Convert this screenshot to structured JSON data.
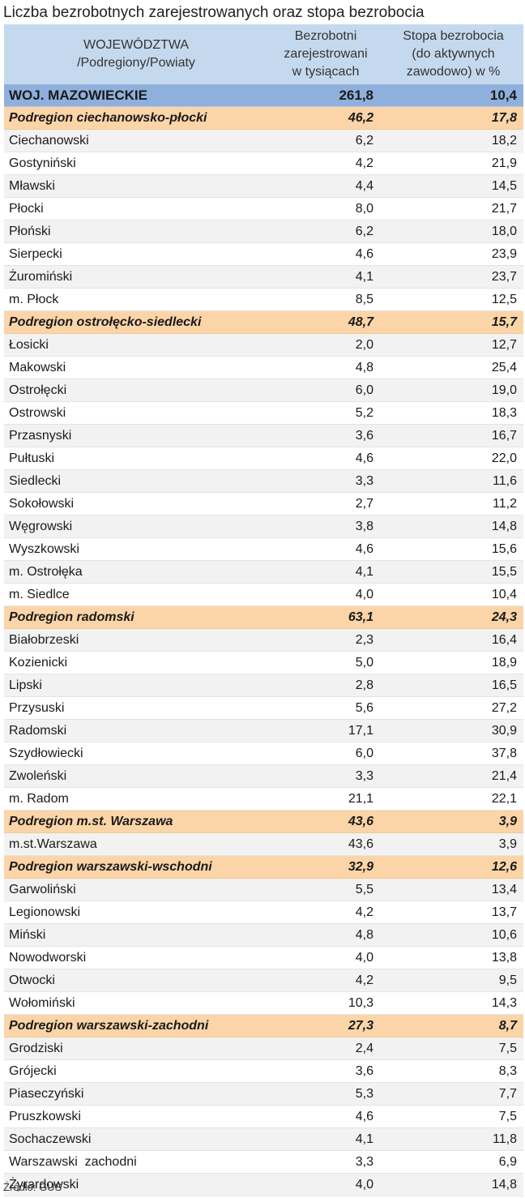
{
  "title": "Liczba bezrobotnych zarejestrowanych oraz stopa bezrobocia",
  "headers": {
    "col1": [
      "WOJEWÓDZTWA",
      "/Podregiony/Powiaty"
    ],
    "col2": [
      "Bezrobotni",
      "zarejestrowani",
      "w tysiącach"
    ],
    "col3": [
      "Stopa bezrobocia",
      "(do aktywnych",
      "zawodowo) w %"
    ]
  },
  "rows": [
    {
      "type": "woj",
      "name": "WOJ. MAZOWIECKIE",
      "unemployed": "261,8",
      "rate": "10,4"
    },
    {
      "type": "sub",
      "name": "Podregion ciechanowsko-płocki",
      "unemployed": "46,2",
      "rate": "17,8"
    },
    {
      "type": "row",
      "name": "Ciechanowski",
      "unemployed": "6,2",
      "rate": "18,2"
    },
    {
      "type": "row",
      "name": "Gostyniński",
      "unemployed": "4,2",
      "rate": "21,9"
    },
    {
      "type": "row",
      "name": "Mławski",
      "unemployed": "4,4",
      "rate": "14,5"
    },
    {
      "type": "row",
      "name": "Płocki",
      "unemployed": "8,0",
      "rate": "21,7"
    },
    {
      "type": "row",
      "name": "Płoński",
      "unemployed": "6,2",
      "rate": "18,0"
    },
    {
      "type": "row",
      "name": "Sierpecki",
      "unemployed": "4,6",
      "rate": "23,9"
    },
    {
      "type": "row",
      "name": "Żuromiński",
      "unemployed": "4,1",
      "rate": "23,7"
    },
    {
      "type": "row",
      "name": "m. Płock",
      "unemployed": "8,5",
      "rate": "12,5"
    },
    {
      "type": "sub",
      "name": "Podregion ostrołęcko-siedlecki",
      "unemployed": "48,7",
      "rate": "15,7"
    },
    {
      "type": "row",
      "name": "Łosicki",
      "unemployed": "2,0",
      "rate": "12,7"
    },
    {
      "type": "row",
      "name": "Makowski",
      "unemployed": "4,8",
      "rate": "25,4"
    },
    {
      "type": "row",
      "name": "Ostrołęcki",
      "unemployed": "6,0",
      "rate": "19,0"
    },
    {
      "type": "row",
      "name": "Ostrowski",
      "unemployed": "5,2",
      "rate": "18,3"
    },
    {
      "type": "row",
      "name": "Przasnyski",
      "unemployed": "3,6",
      "rate": "16,7"
    },
    {
      "type": "row",
      "name": "Pułtuski",
      "unemployed": "4,6",
      "rate": "22,0"
    },
    {
      "type": "row",
      "name": "Siedlecki",
      "unemployed": "3,3",
      "rate": "11,6"
    },
    {
      "type": "row",
      "name": "Sokołowski",
      "unemployed": "2,7",
      "rate": "11,2"
    },
    {
      "type": "row",
      "name": "Węgrowski",
      "unemployed": "3,8",
      "rate": "14,8"
    },
    {
      "type": "row",
      "name": "Wyszkowski",
      "unemployed": "4,6",
      "rate": "15,6"
    },
    {
      "type": "row",
      "name": "m. Ostrołęka",
      "unemployed": "4,1",
      "rate": "15,5"
    },
    {
      "type": "row",
      "name": "m. Siedlce",
      "unemployed": "4,0",
      "rate": "10,4"
    },
    {
      "type": "sub",
      "name": "Podregion radomski",
      "unemployed": "63,1",
      "rate": "24,3"
    },
    {
      "type": "row",
      "name": "Białobrzeski",
      "unemployed": "2,3",
      "rate": "16,4"
    },
    {
      "type": "row",
      "name": "Kozienicki",
      "unemployed": "5,0",
      "rate": "18,9"
    },
    {
      "type": "row",
      "name": "Lipski",
      "unemployed": "2,8",
      "rate": "16,5"
    },
    {
      "type": "row",
      "name": "Przysuski",
      "unemployed": "5,6",
      "rate": "27,2"
    },
    {
      "type": "row",
      "name": "Radomski",
      "unemployed": "17,1",
      "rate": "30,9"
    },
    {
      "type": "row",
      "name": "Szydłowiecki",
      "unemployed": "6,0",
      "rate": "37,8"
    },
    {
      "type": "row",
      "name": "Zwoleński",
      "unemployed": "3,3",
      "rate": "21,4"
    },
    {
      "type": "row",
      "name": "m. Radom",
      "unemployed": "21,1",
      "rate": "22,1"
    },
    {
      "type": "sub",
      "name": "Podregion m.st. Warszawa",
      "unemployed": "43,6",
      "rate": "3,9"
    },
    {
      "type": "row",
      "name": "m.st.Warszawa",
      "unemployed": "43,6",
      "rate": "3,9"
    },
    {
      "type": "sub",
      "name": "Podregion warszawski-wschodni",
      "unemployed": "32,9",
      "rate": "12,6"
    },
    {
      "type": "row",
      "name": "Garwoliński",
      "unemployed": "5,5",
      "rate": "13,4"
    },
    {
      "type": "row",
      "name": "Legionowski",
      "unemployed": "4,2",
      "rate": "13,7"
    },
    {
      "type": "row",
      "name": "Miński",
      "unemployed": "4,8",
      "rate": "10,6"
    },
    {
      "type": "row",
      "name": "Nowodworski",
      "unemployed": "4,0",
      "rate": "13,8"
    },
    {
      "type": "row",
      "name": "Otwocki",
      "unemployed": "4,2",
      "rate": "9,5"
    },
    {
      "type": "row",
      "name": "Wołomiński",
      "unemployed": "10,3",
      "rate": "14,3"
    },
    {
      "type": "sub",
      "name": "Podregion warszawski-zachodni",
      "unemployed": "27,3",
      "rate": "8,7"
    },
    {
      "type": "row",
      "name": "Grodziski",
      "unemployed": "2,4",
      "rate": "7,5"
    },
    {
      "type": "row",
      "name": "Grójecki",
      "unemployed": "3,6",
      "rate": "8,3"
    },
    {
      "type": "row",
      "name": "Piaseczyński",
      "unemployed": "5,3",
      "rate": "7,7"
    },
    {
      "type": "row",
      "name": "Pruszkowski",
      "unemployed": "4,6",
      "rate": "7,5"
    },
    {
      "type": "row",
      "name": "Sochaczewski",
      "unemployed": "4,1",
      "rate": "11,8"
    },
    {
      "type": "row",
      "name": "Warszawski  zachodni",
      "unemployed": "3,3",
      "rate": "6,9"
    },
    {
      "type": "row",
      "name": "Żyrardowski",
      "unemployed": "4,0",
      "rate": "14,8"
    }
  ],
  "source": "Źródło: GUS"
}
